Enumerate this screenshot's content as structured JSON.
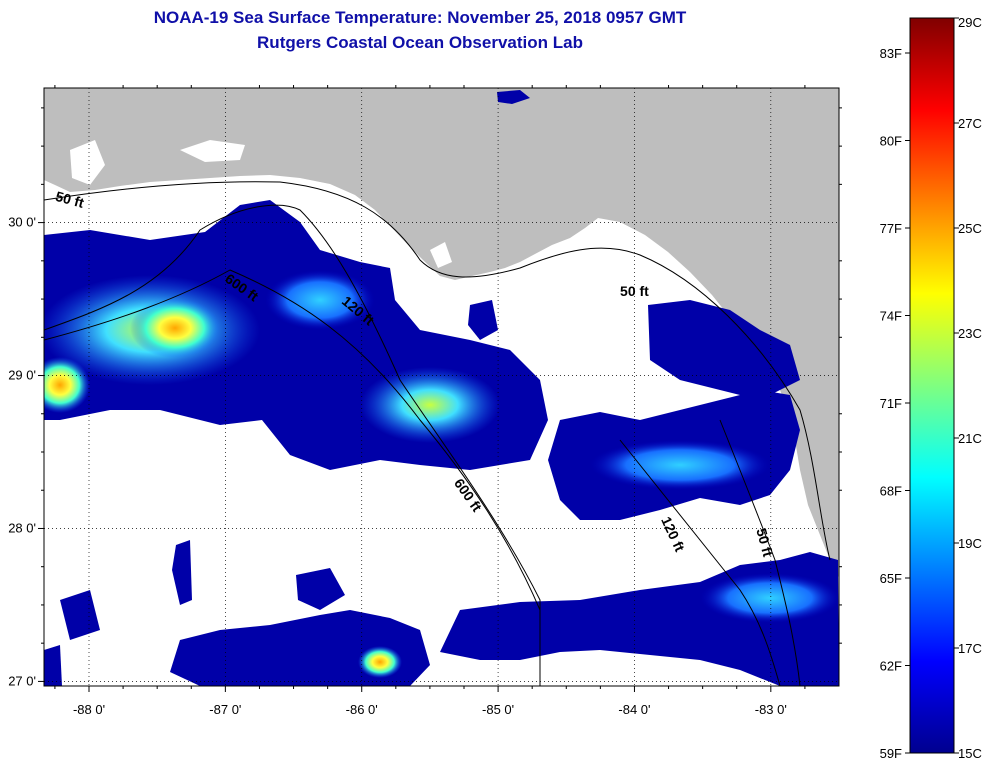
{
  "title": {
    "line1": "NOAA-19 Sea Surface Temperature:  November 25, 2018 0957 GMT",
    "line2": "Rutgers Coastal Ocean Observation Lab"
  },
  "colors": {
    "land": "#bebebe",
    "cloud": "#ffffff",
    "cold": "#0000a8",
    "title": "#1010a8"
  },
  "map": {
    "lon_range": [
      -88.33,
      -82.5
    ],
    "lat_range": [
      26.97,
      30.88
    ],
    "lon_ticks": [
      {
        "value": -88,
        "label": "-88 0'"
      },
      {
        "value": -87,
        "label": "-87 0'"
      },
      {
        "value": -86,
        "label": "-86 0'"
      },
      {
        "value": -85,
        "label": "-85 0'"
      },
      {
        "value": -84,
        "label": "-84 0'"
      },
      {
        "value": -83,
        "label": "-83 0'"
      }
    ],
    "lat_ticks": [
      {
        "value": 30,
        "label": "30 0'"
      },
      {
        "value": 29,
        "label": "29 0'"
      },
      {
        "value": 28,
        "label": "28 0'"
      },
      {
        "value": 27,
        "label": "27 0'"
      }
    ],
    "contour_labels": [
      {
        "text": "50 ft",
        "lon": -88.15,
        "lat": 30.12,
        "rotate": 15
      },
      {
        "text": "600 ft",
        "lon": -86.9,
        "lat": 29.55,
        "rotate": 35
      },
      {
        "text": "120 ft",
        "lon": -86.05,
        "lat": 29.4,
        "rotate": 40
      },
      {
        "text": "50 ft",
        "lon": -84.0,
        "lat": 29.52,
        "rotate": 0
      },
      {
        "text": "600 ft",
        "lon": -85.25,
        "lat": 28.2,
        "rotate": 55
      },
      {
        "text": "120 ft",
        "lon": -83.75,
        "lat": 27.95,
        "rotate": 65
      },
      {
        "text": "50 ft",
        "lon": -83.08,
        "lat": 27.9,
        "rotate": 75
      }
    ]
  },
  "colorbar": {
    "f_labels": [
      {
        "label": "83F",
        "value": 83
      },
      {
        "label": "80F",
        "value": 80
      },
      {
        "label": "77F",
        "value": 77
      },
      {
        "label": "74F",
        "value": 74
      },
      {
        "label": "71F",
        "value": 71
      },
      {
        "label": "68F",
        "value": 68
      },
      {
        "label": "65F",
        "value": 65
      },
      {
        "label": "62F",
        "value": 62
      },
      {
        "label": "59F",
        "value": 59
      }
    ],
    "c_labels": [
      {
        "label": "29C",
        "value": 29
      },
      {
        "label": "27C",
        "value": 27
      },
      {
        "label": "25C",
        "value": 25
      },
      {
        "label": "23C",
        "value": 23
      },
      {
        "label": "21C",
        "value": 21
      },
      {
        "label": "19C",
        "value": 19
      },
      {
        "label": "17C",
        "value": 17
      },
      {
        "label": "15C",
        "value": 15
      }
    ]
  }
}
